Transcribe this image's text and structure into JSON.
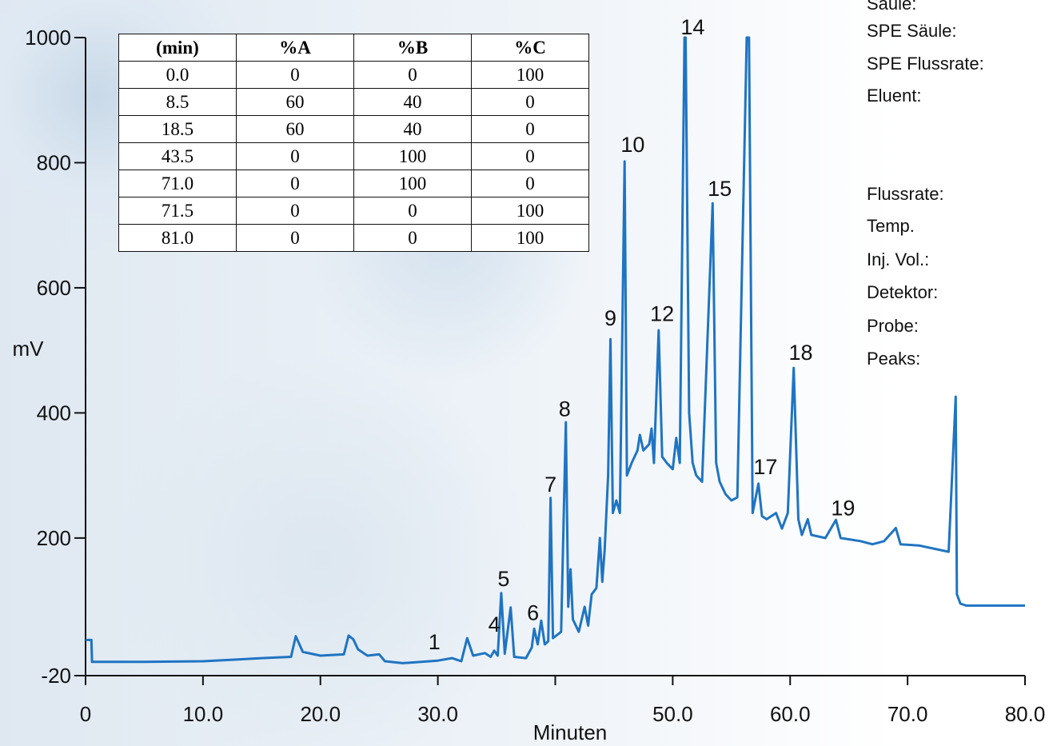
{
  "chart_data": {
    "type": "line",
    "xlabel": "Minuten",
    "ylabel": "mV",
    "xlim": [
      0,
      80
    ],
    "ylim": [
      -20,
      1000
    ],
    "xticks": [
      0,
      {
        "value": 10,
        "label": "10.0"
      },
      {
        "value": 20,
        "label": "20.0"
      },
      {
        "value": 30,
        "label": "30.0"
      },
      {
        "value": 40
      },
      {
        "value": 50,
        "label": "50.0"
      },
      {
        "value": 60,
        "label": "60.0"
      },
      {
        "value": 70,
        "label": "70.0"
      },
      {
        "value": 80,
        "label": "80.0"
      }
    ],
    "yticks": [
      -20,
      200,
      400,
      600,
      800,
      1000
    ],
    "series": [
      {
        "color": "#1f74c2",
        "x": [
          0,
          0.5,
          0.55,
          5,
          10,
          13,
          15,
          17.5,
          17.9,
          18.5,
          20,
          22,
          22.4,
          22.8,
          23.2,
          24,
          25,
          25.5,
          27,
          30,
          31.2,
          32,
          32.5,
          33,
          34,
          34.5,
          34.8,
          35.1,
          35.4,
          35.7,
          36.2,
          36.5,
          37.5,
          38,
          38.2,
          38.5,
          38.8,
          39.1,
          39.4,
          39.6,
          39.8,
          40.5,
          40.9,
          41.1,
          41.3,
          41.5,
          42,
          42.5,
          42.8,
          43.1,
          43.5,
          43.8,
          44,
          44.2,
          44.5,
          44.7,
          44.9,
          45.2,
          45.5,
          45.9,
          46.1,
          46.5,
          47,
          47.2,
          47.5,
          48,
          48.2,
          48.4,
          48.8,
          49.1,
          49.5,
          50,
          50.3,
          50.6,
          51,
          51.1,
          51.4,
          51.7,
          52,
          52.5,
          53.4,
          53.7,
          54,
          54.5,
          55,
          55.5,
          56.3,
          56.5,
          56.8,
          57.3,
          57.6,
          58,
          58.8,
          59.3,
          59.8,
          60.3,
          60.7,
          61,
          61.5,
          61.8,
          63,
          63.9,
          64.3,
          66,
          67,
          68,
          69,
          69.4,
          71,
          73.5,
          74.1,
          74.2,
          74.5,
          75,
          80
        ],
        "values": [
          37,
          37,
          2,
          2,
          3,
          6,
          8,
          10,
          43,
          18,
          12,
          14,
          44,
          38,
          22,
          12,
          14,
          3,
          0,
          4,
          8,
          3,
          40,
          12,
          16,
          10,
          20,
          12,
          112,
          15,
          89,
          10,
          8,
          25,
          55,
          30,
          68,
          30,
          35,
          264,
          40,
          50,
          385,
          90,
          150,
          70,
          50,
          90,
          60,
          110,
          120,
          200,
          130,
          180,
          300,
          518,
          240,
          260,
          240,
          802,
          300,
          320,
          340,
          365,
          340,
          350,
          375,
          320,
          532,
          330,
          320,
          310,
          360,
          320,
          1000,
          1000,
          400,
          320,
          300,
          290,
          735,
          320,
          290,
          270,
          260,
          265,
          1000,
          1000,
          240,
          287,
          235,
          230,
          240,
          215,
          240,
          472,
          230,
          205,
          230,
          205,
          200,
          229,
          200,
          195,
          190,
          195,
          216,
          190,
          188,
          178,
          426,
          110,
          95,
          92,
          92
        ]
      }
    ],
    "annotations": [
      {
        "text": "1",
        "x": 29.7,
        "y": 22
      },
      {
        "text": "4",
        "x": 34.8,
        "y": 50
      },
      {
        "text": "5",
        "x": 35.6,
        "y": 123
      },
      {
        "text": "6",
        "x": 38.1,
        "y": 69
      },
      {
        "text": "7",
        "x": 39.6,
        "y": 274
      },
      {
        "text": "8",
        "x": 40.8,
        "y": 395
      },
      {
        "text": "9",
        "x": 44.7,
        "y": 540
      },
      {
        "text": "10",
        "x": 46.6,
        "y": 817
      },
      {
        "text": "12",
        "x": 49.1,
        "y": 547
      },
      {
        "text": "14",
        "x": 51.7,
        "y": 1005
      },
      {
        "text": "15",
        "x": 54.0,
        "y": 747
      },
      {
        "text": "17",
        "x": 57.9,
        "y": 302
      },
      {
        "text": "18",
        "x": 60.9,
        "y": 485
      },
      {
        "text": "19",
        "x": 64.5,
        "y": 236
      }
    ],
    "table": {
      "header": [
        "(min)",
        "%A",
        "%B",
        "%C"
      ],
      "rows": [
        [
          "0.0",
          "0",
          "0",
          "100"
        ],
        [
          "8.5",
          "60",
          "40",
          "0"
        ],
        [
          "18.5",
          "60",
          "40",
          "0"
        ],
        [
          "43.5",
          "0",
          "100",
          "0"
        ],
        [
          "71.0",
          "0",
          "100",
          "0"
        ],
        [
          "71.5",
          "0",
          "0",
          "100"
        ],
        [
          "81.0",
          "0",
          "0",
          "100"
        ]
      ]
    },
    "info_labels": [
      "Säule:",
      "SPE Säule:",
      "SPE Flussrate:",
      "Eluent:",
      "Flussrate:",
      "Temp.",
      "Inj. Vol.:",
      "Detektor:",
      "Probe:",
      "Peaks:"
    ]
  }
}
